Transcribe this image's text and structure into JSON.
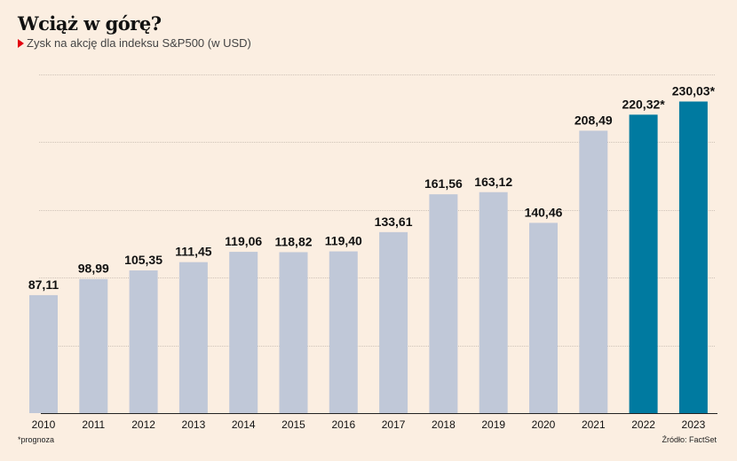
{
  "header": {
    "title": "Wciąż w górę?",
    "subtitle": "Zysk na akcję dla indeksu S&P500 (w USD)"
  },
  "footer": {
    "footnote": "*prognoza",
    "source": "Źródło: FactSet"
  },
  "colors": {
    "background": "#fbeee1",
    "actual_bar": "#c0c8d8",
    "forecast_bar": "#007aa0",
    "marker": "#e3000f"
  },
  "chart_data": {
    "type": "bar",
    "title": "Wciąż w górę?",
    "subtitle": "Zysk na akcję dla indeksu S&P500 (w USD)",
    "xlabel": "",
    "ylabel": "",
    "categories": [
      "2010",
      "2011",
      "2012",
      "2013",
      "2014",
      "2015",
      "2016",
      "2017",
      "2018",
      "2019",
      "2020",
      "2021",
      "2022",
      "2023"
    ],
    "values": [
      87.11,
      98.99,
      105.35,
      111.45,
      119.06,
      118.82,
      119.4,
      133.61,
      161.56,
      163.12,
      140.46,
      208.49,
      220.32,
      230.03
    ],
    "labels": [
      "87,11",
      "98,99",
      "105,35",
      "111,45",
      "119,06",
      "118,82",
      "119,40",
      "133,61",
      "161,56",
      "163,12",
      "140,46",
      "208,49",
      "220,32*",
      "230,03*"
    ],
    "forecast": [
      false,
      false,
      false,
      false,
      false,
      false,
      false,
      false,
      false,
      false,
      false,
      false,
      true,
      true
    ],
    "ylim": [
      0,
      250
    ],
    "gridlines": [
      50,
      100,
      150,
      200,
      250
    ],
    "grid": true,
    "legend": "none"
  }
}
